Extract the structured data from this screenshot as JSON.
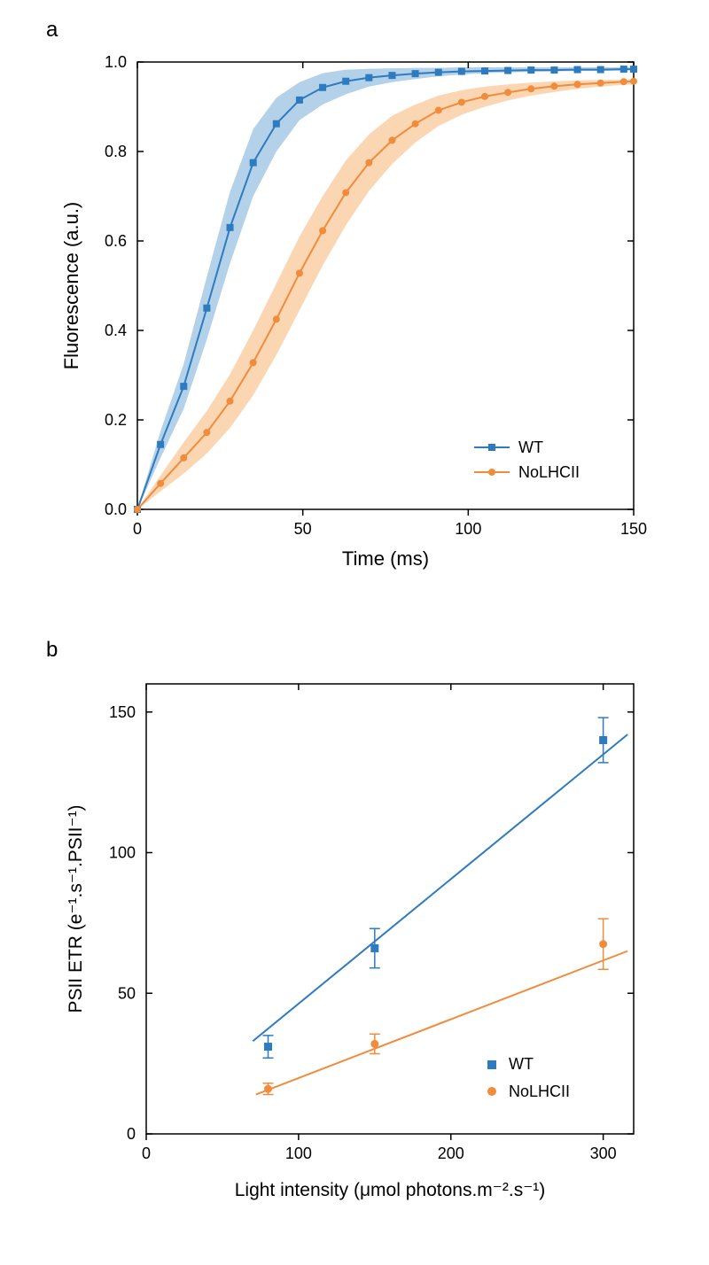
{
  "panel_a_label": "a",
  "panel_b_label": "b",
  "colors": {
    "wt": "#2e7bbf",
    "wt_band": "#b3d1e8",
    "nolhc": "#f08c3c",
    "nolhc_band": "#fbd6b3",
    "axis": "#000000",
    "background": "#ffffff"
  },
  "chart_a": {
    "type": "line",
    "xlabel": "Time (ms)",
    "ylabel": "Fluorescence (a.u.)",
    "xlim": [
      0,
      150
    ],
    "ylim": [
      0.0,
      1.0
    ],
    "xticks": [
      0,
      50,
      100,
      150
    ],
    "yticks": [
      0.0,
      0.2,
      0.4,
      0.6,
      0.8,
      1.0
    ],
    "ytick_labels": [
      "0.0",
      "0.2",
      "0.4",
      "0.6",
      "0.8",
      "1.0"
    ],
    "legend": {
      "wt": "WT",
      "nolhc": "NoLHCII"
    },
    "legend_pos": "bottom-right",
    "marker_size": 7,
    "line_width": 2,
    "wt_marker": "square",
    "nolhc_marker": "circle",
    "series": {
      "wt": {
        "x": [
          0,
          7,
          14,
          21,
          28,
          35,
          42,
          49,
          56,
          63,
          70,
          77,
          84,
          91,
          98,
          105,
          112,
          119,
          126,
          133,
          140,
          147,
          150
        ],
        "y": [
          0.0,
          0.145,
          0.275,
          0.45,
          0.63,
          0.775,
          0.862,
          0.915,
          0.943,
          0.957,
          0.965,
          0.97,
          0.974,
          0.977,
          0.979,
          0.98,
          0.981,
          0.982,
          0.982,
          0.983,
          0.983,
          0.984,
          0.984
        ],
        "lo": [
          0.0,
          0.115,
          0.225,
          0.38,
          0.55,
          0.7,
          0.8,
          0.87,
          0.905,
          0.928,
          0.945,
          0.955,
          0.962,
          0.968,
          0.972,
          0.975,
          0.977,
          0.978,
          0.979,
          0.98,
          0.98,
          0.981,
          0.981
        ],
        "hi": [
          0.0,
          0.175,
          0.325,
          0.52,
          0.71,
          0.85,
          0.92,
          0.955,
          0.975,
          0.983,
          0.985,
          0.986,
          0.987,
          0.987,
          0.988,
          0.988,
          0.988,
          0.988,
          0.988,
          0.988,
          0.988,
          0.988,
          0.988
        ]
      },
      "nolhc": {
        "x": [
          0,
          7,
          14,
          21,
          28,
          35,
          42,
          49,
          56,
          63,
          70,
          77,
          84,
          91,
          98,
          105,
          112,
          119,
          126,
          133,
          140,
          147,
          150
        ],
        "y": [
          0.0,
          0.058,
          0.115,
          0.172,
          0.242,
          0.328,
          0.425,
          0.528,
          0.623,
          0.708,
          0.775,
          0.825,
          0.862,
          0.892,
          0.91,
          0.923,
          0.932,
          0.94,
          0.946,
          0.95,
          0.953,
          0.956,
          0.957
        ],
        "lo": [
          0.0,
          0.04,
          0.08,
          0.125,
          0.182,
          0.255,
          0.345,
          0.445,
          0.545,
          0.635,
          0.712,
          0.772,
          0.82,
          0.857,
          0.882,
          0.9,
          0.914,
          0.925,
          0.933,
          0.94,
          0.945,
          0.949,
          0.95
        ],
        "hi": [
          0.0,
          0.076,
          0.15,
          0.22,
          0.302,
          0.4,
          0.505,
          0.61,
          0.7,
          0.78,
          0.838,
          0.88,
          0.905,
          0.925,
          0.937,
          0.945,
          0.95,
          0.954,
          0.957,
          0.959,
          0.96,
          0.961,
          0.962
        ]
      }
    }
  },
  "chart_b": {
    "type": "scatter+line",
    "xlabel": "Light intensity  (μmol photons.m⁻².s⁻¹)",
    "ylabel": "PSII ETR (e⁻¹.s⁻¹.PSII⁻¹)",
    "xlim": [
      0,
      320
    ],
    "ylim": [
      0,
      160
    ],
    "xticks": [
      0,
      100,
      200,
      300
    ],
    "yticks": [
      0,
      50,
      100,
      150
    ],
    "legend": {
      "wt": "WT",
      "nolhc": "NoLHCII"
    },
    "legend_pos": "bottom-right",
    "marker_size": 9,
    "line_width": 2,
    "wt_marker": "square",
    "nolhc_marker": "circle",
    "series": {
      "wt": {
        "x": [
          80,
          150,
          300
        ],
        "y": [
          31,
          66,
          140
        ],
        "err": [
          4,
          7,
          8
        ],
        "fit": {
          "x0": 70,
          "y0": 33,
          "x1": 316,
          "y1": 142
        }
      },
      "nolhc": {
        "x": [
          80,
          150,
          300
        ],
        "y": [
          16,
          32,
          67.5
        ],
        "err": [
          2,
          3.5,
          9
        ],
        "fit": {
          "x0": 72,
          "y0": 14,
          "x1": 316,
          "y1": 65
        }
      }
    }
  }
}
